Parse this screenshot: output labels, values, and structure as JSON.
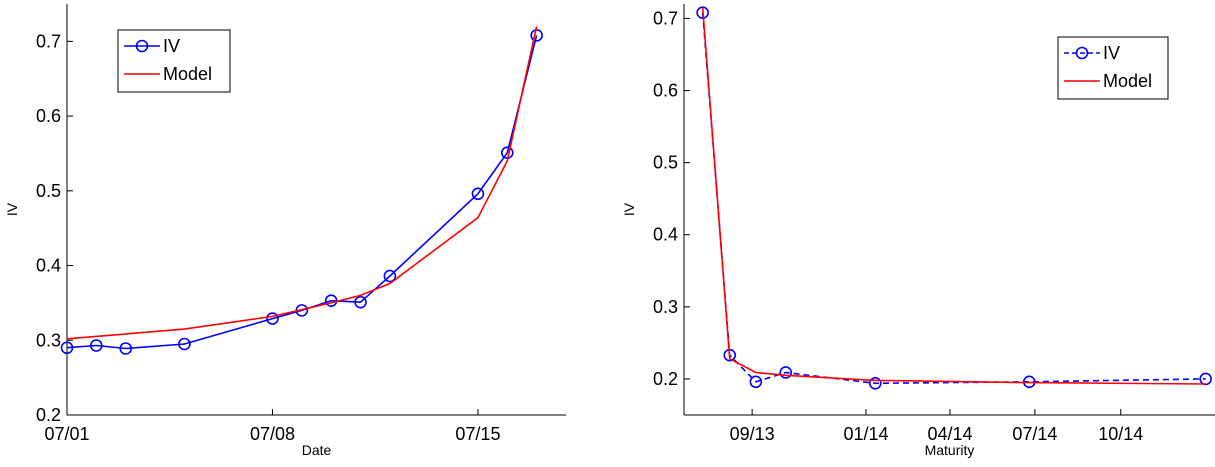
{
  "chart_data": [
    {
      "type": "line",
      "xlabel": "Date",
      "ylabel": "IV",
      "xlim": [
        "07/01",
        "07/18"
      ],
      "ylim": [
        0.2,
        0.75
      ],
      "x_ticks": [
        "07/01",
        "07/08",
        "07/15"
      ],
      "y_ticks": [
        "0.2",
        "0.3",
        "0.4",
        "0.5",
        "0.6",
        "0.7"
      ],
      "legend_position": "top-left",
      "grid": false,
      "series": [
        {
          "name": "IV",
          "color": "#0000ff",
          "style": "solid",
          "marker": "circle",
          "x": [
            "07/01",
            "07/02",
            "07/03",
            "07/05",
            "07/08",
            "07/09",
            "07/10",
            "07/11",
            "07/12",
            "07/15",
            "07/16",
            "07/17"
          ],
          "y": [
            0.29,
            0.293,
            0.289,
            0.295,
            0.329,
            0.34,
            0.353,
            0.351,
            0.386,
            0.496,
            0.551,
            0.708
          ]
        },
        {
          "name": "Model",
          "color": "#ff0000",
          "style": "solid",
          "marker": "none",
          "x": [
            "07/01",
            "07/05",
            "07/08",
            "07/10",
            "07/11",
            "07/12",
            "07/15",
            "07/16",
            "07/17"
          ],
          "y": [
            0.302,
            0.315,
            0.332,
            0.35,
            0.36,
            0.376,
            0.464,
            0.54,
            0.72
          ]
        }
      ]
    },
    {
      "type": "line",
      "xlabel": "Maturity",
      "ylabel": "IV",
      "xlim": [
        "2013-06-20",
        "2015-01-10"
      ],
      "ylim": [
        0.15,
        0.72
      ],
      "x_ticks": [
        "09/13",
        "01/14",
        "04/14",
        "07/14",
        "10/14"
      ],
      "x_tick_dates": [
        "2013-09-01",
        "2014-01-01",
        "2014-04-01",
        "2014-07-01",
        "2014-10-01"
      ],
      "y_ticks": [
        "0.2",
        "0.3",
        "0.4",
        "0.5",
        "0.6",
        "0.7"
      ],
      "legend_position": "top-right",
      "grid": false,
      "series": [
        {
          "name": "IV",
          "color": "#0000ff",
          "style": "dashed",
          "marker": "circle",
          "x": [
            "2013-07-10",
            "2013-08-08",
            "2013-09-05",
            "2013-10-07",
            "2014-01-11",
            "2014-06-25",
            "2014-12-31"
          ],
          "y": [
            0.708,
            0.233,
            0.196,
            0.209,
            0.194,
            0.196,
            0.2
          ]
        },
        {
          "name": "Model",
          "color": "#ff0000",
          "style": "solid",
          "marker": "none",
          "x": [
            "2013-07-10",
            "2013-08-08",
            "2013-09-05",
            "2013-10-07",
            "2014-01-11",
            "2014-06-25",
            "2014-12-31"
          ],
          "y": [
            0.715,
            0.228,
            0.209,
            0.205,
            0.198,
            0.195,
            0.193
          ]
        }
      ]
    }
  ]
}
